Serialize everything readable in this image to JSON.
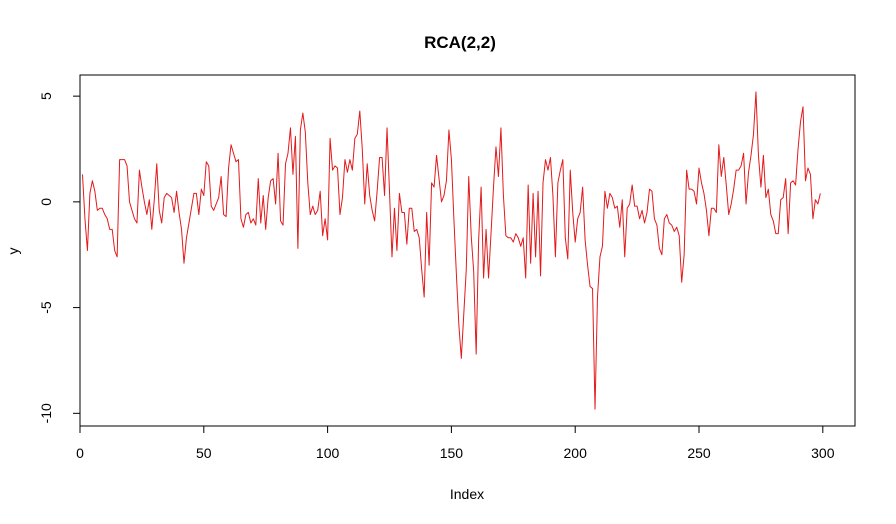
{
  "chart_data": {
    "type": "line",
    "title": "RCA(2,2)",
    "xlabel": "Index",
    "ylabel": "y",
    "xlim": [
      0,
      313
    ],
    "ylim": [
      -10.6,
      6.0
    ],
    "x_ticks": [
      0,
      50,
      100,
      150,
      200,
      250,
      300
    ],
    "y_ticks": [
      5,
      0,
      -5,
      -10
    ],
    "x_tick_labels": [
      "0",
      "50",
      "100",
      "150",
      "200",
      "250",
      "300"
    ],
    "y_tick_labels": [
      "5",
      "0",
      "-5",
      "-10"
    ],
    "grid": false,
    "legend": "none",
    "series_color": "#e31a1c",
    "series": [
      {
        "values": [
          1.3,
          -0.8,
          -2.3,
          0.4,
          1.0,
          0.5,
          -0.4,
          -0.3,
          -0.3,
          -0.6,
          -0.8,
          -1.3,
          -1.3,
          -2.3,
          -2.6,
          2.0,
          2.0,
          2.0,
          1.7,
          0.0,
          -0.4,
          -0.8,
          -1.0,
          1.5,
          0.7,
          0.0,
          -0.6,
          0.1,
          -1.3,
          0.1,
          1.8,
          -0.4,
          -1.0,
          0.2,
          0.4,
          0.3,
          0.2,
          -0.5,
          0.5,
          -0.5,
          -1.3,
          -2.9,
          -1.7,
          -1.0,
          -0.3,
          0.4,
          0.4,
          -0.6,
          0.6,
          0.3,
          1.9,
          1.7,
          -0.2,
          -0.4,
          -0.1,
          0.2,
          1.2,
          -0.6,
          -0.7,
          1.6,
          2.7,
          2.3,
          1.9,
          2.0,
          -0.8,
          -1.2,
          -0.6,
          -0.5,
          -1.0,
          -0.8,
          -1.1,
          1.1,
          -1.0,
          0.3,
          -1.3,
          0.2,
          1.0,
          1.1,
          -0.1,
          2.3,
          -0.9,
          -1.1,
          1.8,
          2.3,
          3.5,
          1.3,
          3.1,
          -2.2,
          3.4,
          4.2,
          3.3,
          0.9,
          -0.6,
          -0.2,
          -0.6,
          -0.4,
          0.5,
          -1.6,
          -0.8,
          -1.8,
          3.0,
          1.5,
          1.7,
          1.6,
          -0.6,
          0.2,
          2.0,
          1.4,
          2.0,
          1.5,
          3.0,
          3.2,
          4.3,
          2.5,
          -0.1,
          1.8,
          0.3,
          -0.4,
          -0.9,
          0.5,
          2.1,
          2.1,
          0.3,
          3.5,
          0.5,
          -2.6,
          -0.3,
          -2.3,
          0.4,
          -0.5,
          -0.5,
          -2.0,
          -0.3,
          -0.3,
          -1.4,
          -1.3,
          -1.7,
          -3.2,
          -4.5,
          -0.5,
          -3.0,
          0.9,
          0.7,
          2.2,
          1.1,
          0.0,
          0.3,
          1.0,
          3.4,
          2.0,
          -0.8,
          -3.4,
          -5.8,
          -7.4,
          -5.3,
          -3.2,
          1.2,
          -1.6,
          -3.3,
          -7.2,
          -1.8,
          0.7,
          -3.6,
          -1.3,
          -3.6,
          -1.5,
          0.7,
          2.6,
          1.2,
          3.5,
          0.3,
          -1.6,
          -1.7,
          -1.7,
          -1.9,
          -1.5,
          -1.7,
          -2.1,
          -1.7,
          -3.6,
          0.8,
          -2.9,
          0.4,
          -2.6,
          0.5,
          -3.5,
          0.9,
          2.0,
          1.5,
          2.1,
          0.3,
          -2.6,
          0.9,
          1.5,
          2.0,
          -1.7,
          -2.7,
          1.5,
          -0.5,
          -1.9,
          -0.8,
          -0.5,
          0.7,
          -1.8,
          -3.0,
          -4.0,
          -4.1,
          -9.8,
          -4.5,
          -2.6,
          -2.1,
          0.5,
          -0.3,
          0.4,
          0.2,
          -0.3,
          -0.2,
          -1.2,
          0.1,
          -2.6,
          -0.3,
          -0.1,
          0.8,
          -0.2,
          -0.2,
          -0.8,
          -0.4,
          -1.0,
          -0.5,
          0.6,
          0.5,
          -0.8,
          -1.1,
          -2.2,
          -2.5,
          -0.8,
          -0.6,
          -1.0,
          -1.1,
          -1.4,
          -1.2,
          -1.6,
          -3.8,
          -2.5,
          1.5,
          0.6,
          0.6,
          0.5,
          -0.1,
          1.6,
          0.9,
          0.4,
          -0.4,
          -1.6,
          -0.3,
          -0.3,
          -0.5,
          2.7,
          1.2,
          2.1,
          0.8,
          -0.6,
          -0.1,
          0.6,
          1.5,
          1.5,
          1.7,
          2.3,
          -0.1,
          1.4,
          2.2,
          3.2,
          5.2,
          2.2,
          0.7,
          2.2,
          0.2,
          0.6,
          -0.6,
          -0.9,
          -1.5,
          -1.5,
          0.1,
          0.2,
          1.1,
          -1.5,
          0.9,
          1.0,
          0.8,
          2.5,
          3.8,
          4.5,
          1.0,
          1.6,
          1.3,
          -0.8,
          0.1,
          -0.1,
          0.4
        ]
      }
    ]
  }
}
